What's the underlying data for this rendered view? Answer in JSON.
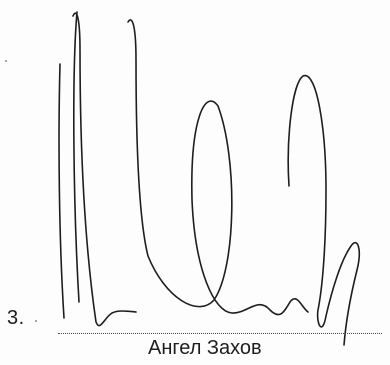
{
  "signature_block": {
    "item_number": "3.",
    "signer_name": "Ангел Захов"
  },
  "colors": {
    "ink": "#1e1e1e",
    "paper": "#fdfdfd"
  }
}
